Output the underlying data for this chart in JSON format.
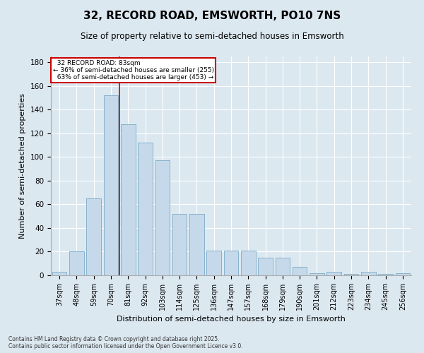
{
  "title1": "32, RECORD ROAD, EMSWORTH, PO10 7NS",
  "title2": "Size of property relative to semi-detached houses in Emsworth",
  "xlabel": "Distribution of semi-detached houses by size in Emsworth",
  "ylabel": "Number of semi-detached properties",
  "categories": [
    "37sqm",
    "48sqm",
    "59sqm",
    "70sqm",
    "81sqm",
    "92sqm",
    "103sqm",
    "114sqm",
    "125sqm",
    "136sqm",
    "147sqm",
    "157sqm",
    "168sqm",
    "179sqm",
    "190sqm",
    "201sqm",
    "212sqm",
    "223sqm",
    "234sqm",
    "245sqm",
    "256sqm"
  ],
  "values": [
    3,
    20,
    65,
    152,
    128,
    112,
    97,
    52,
    52,
    21,
    21,
    21,
    15,
    15,
    7,
    2,
    3,
    1,
    3,
    1,
    2
  ],
  "bar_color": "#c6d9ea",
  "bar_edge_color": "#7aaac8",
  "vline_index": 4,
  "vline_color": "#cc0000",
  "highlight_label": "32 RECORD ROAD: 83sqm",
  "pct_smaller": "36% of semi-detached houses are smaller (255)",
  "pct_larger": "63% of semi-detached houses are larger (453)",
  "annotation_box_color": "#ffffff",
  "annotation_box_edge": "#cc0000",
  "background_color": "#dce8f0",
  "plot_background": "#dce8f0",
  "ylim": [
    0,
    185
  ],
  "yticks": [
    0,
    20,
    40,
    60,
    80,
    100,
    120,
    140,
    160,
    180
  ],
  "footer1": "Contains HM Land Registry data © Crown copyright and database right 2025.",
  "footer2": "Contains public sector information licensed under the Open Government Licence v3.0."
}
